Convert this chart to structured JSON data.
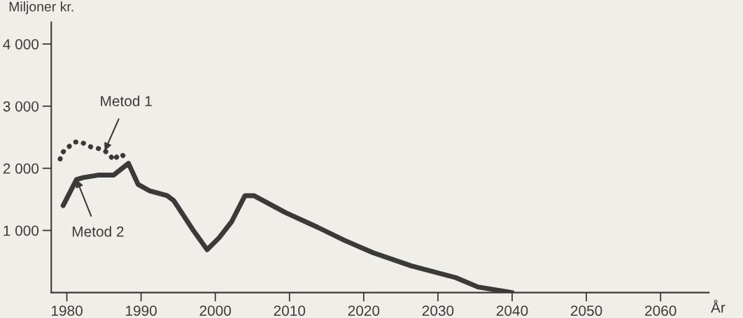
{
  "chart_data": {
    "type": "line",
    "xlabel": "År",
    "ylabel": "Miljoner kr.",
    "xlim": [
      1977.9,
      2066.5
    ],
    "ylim": [
      0,
      4350
    ],
    "xticks": [
      1980,
      1990,
      2000,
      2010,
      2020,
      2030,
      2040,
      2050,
      2060
    ],
    "yticks": [
      {
        "value": 1000,
        "label": "1 000"
      },
      {
        "value": 2000,
        "label": "2 000"
      },
      {
        "value": 3000,
        "label": "3 000"
      },
      {
        "value": 4000,
        "label": "4 000"
      }
    ],
    "grid": false,
    "series": [
      {
        "color": "#3a3a3a",
        "line_style": "dotted",
        "x": [
          1979.1,
          1979.3,
          1979.8,
          1980.3,
          1981.0,
          1981.7,
          1982.5,
          1983.3,
          1984.2,
          1985.1,
          1985.7,
          1986.3,
          1986.8,
          1987.4,
          1987.9
        ],
        "values": [
          2150,
          2230,
          2310,
          2350,
          2420,
          2430,
          2390,
          2340,
          2320,
          2280,
          2230,
          2130,
          2190,
          2230,
          2150
        ]
      },
      {
        "color": "#3a3a3a",
        "line_style": "solid",
        "x": [
          1979.5,
          1981.3,
          1982.2,
          1984.2,
          1986.3,
          1988.3,
          1989.6,
          1991.1,
          1993.5,
          1994.4,
          1997.1,
          1998.9,
          2000.5,
          2002.2,
          2004.0,
          2005.2,
          2009.4,
          2013.8,
          2017.4,
          2021.3,
          2026.4,
          2032.4,
          2035.4,
          2040.0
        ],
        "values": [
          1400,
          1820,
          1850,
          1890,
          1890,
          2080,
          1740,
          1640,
          1560,
          1480,
          990,
          690,
          880,
          1140,
          1560,
          1560,
          1290,
          1050,
          840,
          640,
          430,
          240,
          90,
          0
        ]
      }
    ],
    "annotations": [
      {
        "text": "Metod 1",
        "x": 1985.1,
        "y": 2280
      },
      {
        "text": "Metod 2",
        "x": 1981.3,
        "y": 1820
      }
    ]
  }
}
